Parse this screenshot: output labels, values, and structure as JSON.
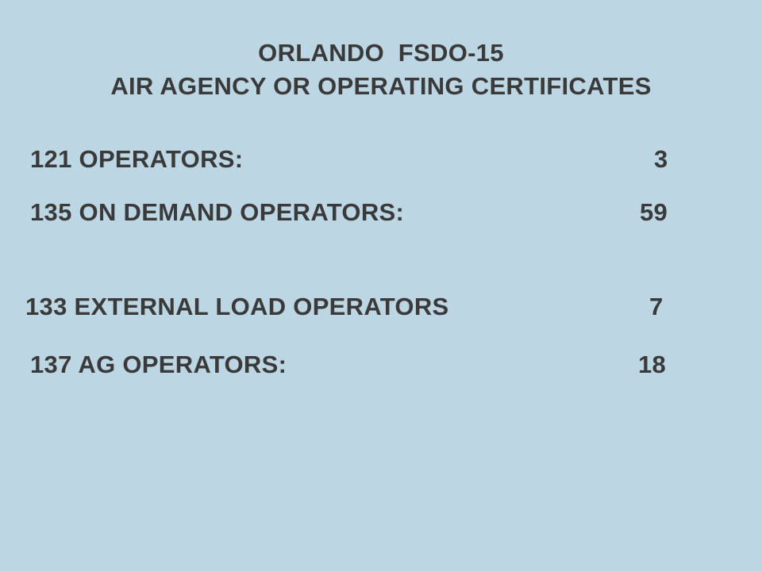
{
  "header": {
    "line1": "ORLANDO  FSDO-15",
    "line2": "AIR AGENCY OR OPERATING CERTIFICATES"
  },
  "rows": [
    {
      "label": "121 OPERATORS:",
      "value": "3"
    },
    {
      "label": "135 ON DEMAND OPERATORS:",
      "value": "59"
    },
    {
      "label": "133 EXTERNAL LOAD OPERATORS",
      "value": "7"
    },
    {
      "label": "137 AG OPERATORS:",
      "value": "18"
    }
  ],
  "colors": {
    "background": "#bdd6e4",
    "text": "#3a3a3a"
  }
}
